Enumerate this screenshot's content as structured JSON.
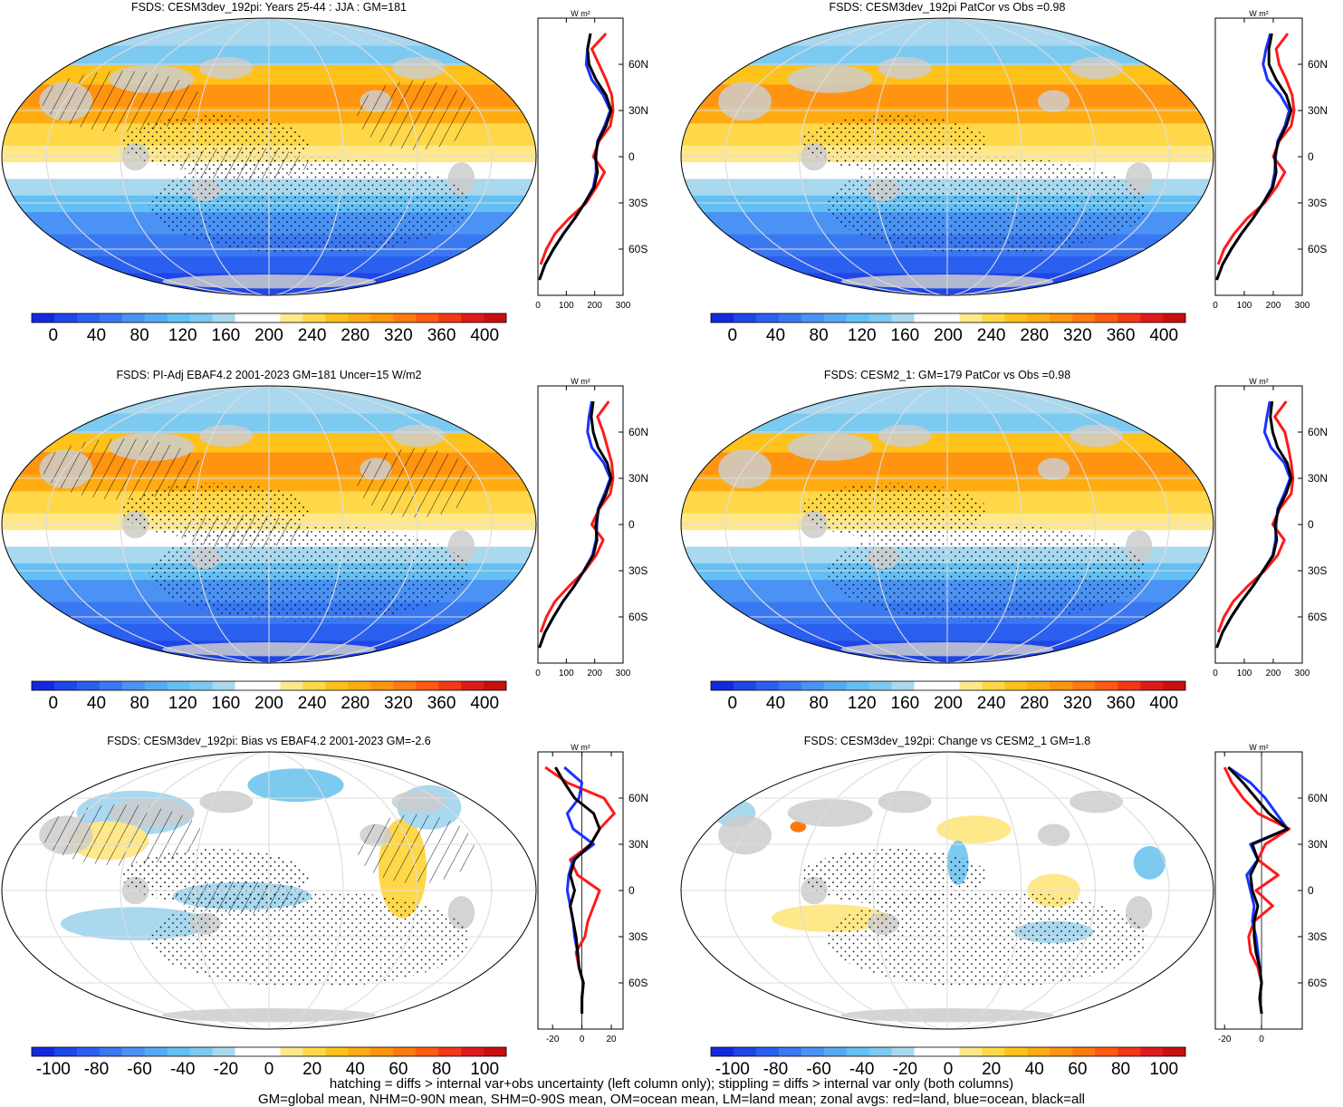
{
  "footer": {
    "line1": "hatching = diffs > internal var+obs uncertainty (left column only); stippling = diffs > internal var only (both columns)",
    "line2": "GM=global mean, NHM=0-90N mean, SHM=0-90S mean, OM=ocean mean, LM=land mean; zonal avgs: red=land, blue=ocean, black=all"
  },
  "colors": {
    "land": "#ff1a1a",
    "ocean": "#1a33ff",
    "all": "#000000",
    "gray_land": "#cccccc"
  },
  "palette": [
    "#1428e0",
    "#1e46e8",
    "#2a5ff0",
    "#3a78f2",
    "#4a92f4",
    "#55aaf4",
    "#62c0f4",
    "#7ccaf0",
    "#a9d8ef",
    "#ffffff",
    "#ffffff",
    "#ffe88a",
    "#ffd84a",
    "#ffc21a",
    "#ffab12",
    "#ff9410",
    "#ff7a10",
    "#ff5a10",
    "#f23814",
    "#e01a1a",
    "#c80f0f"
  ],
  "chart_data": [
    {
      "type": "heatmap",
      "title": "FSDS: CESM3dev_192pi: Years 25-44 : JJA : GM=181",
      "colorbar_ticks": [
        "0",
        "40",
        "80",
        "120",
        "160",
        "200",
        "240",
        "280",
        "320",
        "360",
        "400"
      ],
      "colorbar_range": [
        -20,
        420
      ],
      "zonal": {
        "title": "W m²",
        "xlim": [
          0,
          300
        ],
        "xticks": [
          "0",
          "100",
          "200",
          "300"
        ],
        "lat_labels": [
          "60N",
          "30N",
          "0",
          "30S",
          "60S"
        ],
        "lat": [
          -90,
          -80,
          -70,
          -60,
          -50,
          -40,
          -30,
          -20,
          -10,
          0,
          10,
          20,
          30,
          40,
          50,
          60,
          70,
          80,
          90
        ],
        "series": [
          {
            "name": "land",
            "color": "#ff1a1a",
            "values": [
              null,
              null,
              10,
              30,
              60,
              110,
              170,
              205,
              235,
              195,
              215,
              255,
              265,
              260,
              240,
              215,
              190,
              240,
              null
            ]
          },
          {
            "name": "ocean",
            "color": "#1a33ff",
            "values": [
              null,
              5,
              25,
              55,
              90,
              130,
              165,
              195,
              205,
              205,
              210,
              235,
              255,
              230,
              190,
              170,
              175,
              185,
              null
            ]
          },
          {
            "name": "all",
            "color": "#000000",
            "values": [
              null,
              5,
              25,
              55,
              90,
              130,
              165,
              198,
              210,
              202,
              212,
              240,
              258,
              240,
              205,
              180,
              175,
              185,
              null
            ]
          }
        ]
      }
    },
    {
      "type": "heatmap",
      "title": "FSDS: CESM3dev_192pi PatCor vs Obs =0.98",
      "colorbar_ticks": [
        "0",
        "40",
        "80",
        "120",
        "160",
        "200",
        "240",
        "280",
        "320",
        "360",
        "400"
      ],
      "colorbar_range": [
        -20,
        420
      ],
      "zonal": {
        "title": "W m²",
        "xlim": [
          0,
          300
        ],
        "xticks": [
          "0",
          "100",
          "200",
          "300"
        ],
        "lat_labels": [
          "60N",
          "30N",
          "0",
          "30S",
          "60S"
        ],
        "lat": [
          -90,
          -80,
          -70,
          -60,
          -50,
          -40,
          -30,
          -20,
          -10,
          0,
          10,
          20,
          30,
          40,
          50,
          60,
          70,
          80,
          90
        ],
        "series": [
          {
            "name": "land",
            "color": "#ff1a1a",
            "values": [
              null,
              null,
              10,
              30,
              65,
              110,
              170,
              210,
              240,
              200,
              220,
              262,
              272,
              265,
              245,
              220,
              210,
              250,
              null
            ]
          },
          {
            "name": "ocean",
            "color": "#1a33ff",
            "values": [
              null,
              5,
              25,
              55,
              90,
              130,
              165,
              195,
              205,
              208,
              215,
              240,
              255,
              225,
              180,
              165,
              175,
              190,
              null
            ]
          },
          {
            "name": "all",
            "color": "#000000",
            "values": [
              null,
              5,
              25,
              55,
              90,
              130,
              165,
              198,
              210,
              205,
              218,
              245,
              262,
              245,
              210,
              185,
              185,
              195,
              null
            ]
          }
        ]
      }
    },
    {
      "type": "heatmap",
      "title": "FSDS: PI-Adj EBAF4.2 2001-2023 GM=181 Uncer=15 W/m2",
      "colorbar_ticks": [
        "0",
        "40",
        "80",
        "120",
        "160",
        "200",
        "240",
        "280",
        "320",
        "360",
        "400"
      ],
      "colorbar_range": [
        -20,
        420
      ],
      "zonal": {
        "title": "W m²",
        "xlim": [
          0,
          300
        ],
        "xticks": [
          "0",
          "100",
          "200",
          "300"
        ],
        "lat_labels": [
          "60N",
          "30N",
          "0",
          "30S",
          "60S"
        ],
        "lat": [
          -90,
          -80,
          -70,
          -60,
          -50,
          -40,
          -30,
          -20,
          -10,
          0,
          10,
          20,
          30,
          40,
          50,
          60,
          70,
          80,
          90
        ],
        "series": [
          {
            "name": "land",
            "color": "#ff1a1a",
            "values": [
              null,
              null,
              10,
              30,
              60,
              110,
              165,
              205,
              230,
              190,
              215,
              255,
              265,
              260,
              245,
              230,
              210,
              250,
              null
            ]
          },
          {
            "name": "ocean",
            "color": "#1a33ff",
            "values": [
              null,
              5,
              25,
              55,
              88,
              128,
              162,
              192,
              205,
              208,
              212,
              235,
              255,
              232,
              190,
              175,
              180,
              190,
              null
            ]
          },
          {
            "name": "all",
            "color": "#000000",
            "values": [
              null,
              5,
              25,
              55,
              88,
              128,
              162,
              195,
              208,
              204,
              214,
              240,
              258,
              244,
              212,
              195,
              188,
              195,
              null
            ]
          }
        ]
      }
    },
    {
      "type": "heatmap",
      "title": "FSDS: CESM2_1: GM=179 PatCor vs Obs =0.98",
      "colorbar_ticks": [
        "0",
        "40",
        "80",
        "120",
        "160",
        "200",
        "240",
        "280",
        "320",
        "360",
        "400"
      ],
      "colorbar_range": [
        -20,
        420
      ],
      "zonal": {
        "title": "W m²",
        "xlim": [
          0,
          300
        ],
        "xticks": [
          "0",
          "100",
          "200",
          "300"
        ],
        "lat_labels": [
          "60N",
          "30N",
          "0",
          "30S",
          "60S"
        ],
        "lat": [
          -90,
          -80,
          -70,
          -60,
          -50,
          -40,
          -30,
          -20,
          -10,
          0,
          10,
          20,
          30,
          40,
          50,
          60,
          70,
          80,
          90
        ],
        "series": [
          {
            "name": "land",
            "color": "#ff1a1a",
            "values": [
              null,
              null,
              10,
              30,
              62,
              112,
              170,
              215,
              238,
              198,
              222,
              262,
              268,
              262,
              252,
              240,
              205,
              245,
              null
            ]
          },
          {
            "name": "ocean",
            "color": "#1a33ff",
            "values": [
              null,
              5,
              25,
              55,
              90,
              130,
              165,
              198,
              208,
              210,
              215,
              238,
              258,
              238,
              192,
              170,
              178,
              188,
              null
            ]
          },
          {
            "name": "all",
            "color": "#000000",
            "values": [
              null,
              5,
              25,
              55,
              90,
              130,
              165,
              200,
              212,
              206,
              218,
              244,
              262,
              248,
              215,
              198,
              190,
              196,
              null
            ]
          }
        ]
      }
    },
    {
      "type": "heatmap",
      "title": "FSDS: CESM3dev_192pi: Bias vs EBAF4.2 2001-2023 GM=-2.6",
      "colorbar_ticks": [
        "-100",
        "-80",
        "-60",
        "-40",
        "-20",
        "0",
        "20",
        "40",
        "60",
        "80",
        "100"
      ],
      "colorbar_range": [
        -110,
        110
      ],
      "zonal": {
        "title": "W m²",
        "xlim": [
          -30,
          28
        ],
        "xticks": [
          "-20",
          "0",
          "20"
        ],
        "lat_labels": [
          "60N",
          "30N",
          "0",
          "30S",
          "60S"
        ],
        "lat": [
          -90,
          -80,
          -70,
          -60,
          -50,
          -40,
          -30,
          -20,
          -10,
          0,
          10,
          20,
          30,
          40,
          50,
          60,
          70,
          80,
          90
        ],
        "series": [
          {
            "name": "land",
            "color": "#ff1a1a",
            "values": [
              null,
              null,
              0,
              1,
              -2,
              -4,
              2,
              4,
              8,
              12,
              -3,
              -8,
              6,
              12,
              22,
              15,
              -10,
              -25,
              null
            ]
          },
          {
            "name": "ocean",
            "color": "#1a33ff",
            "values": [
              null,
              0,
              0,
              1,
              -2,
              -3,
              -5,
              -6,
              -8,
              -10,
              -9,
              -6,
              8,
              -6,
              -10,
              -2,
              0,
              -12,
              null
            ]
          },
          {
            "name": "all",
            "color": "#000000",
            "values": [
              null,
              0,
              0,
              1,
              -2,
              -3,
              -4,
              -6,
              -8,
              -5,
              -8,
              -5,
              6,
              12,
              8,
              -5,
              -12,
              -18,
              null
            ]
          }
        ]
      }
    },
    {
      "type": "heatmap",
      "title": "FSDS: CESM3dev_192pi: Change vs CESM2_1 GM=1.8",
      "colorbar_ticks": [
        "-100",
        "-80",
        "-60",
        "-40",
        "-20",
        "0",
        "20",
        "40",
        "60",
        "80",
        "100"
      ],
      "colorbar_range": [
        -110,
        110
      ],
      "zonal": {
        "title": "W m²",
        "xlim": [
          -25,
          22
        ],
        "xticks": [
          "-20",
          "0"
        ],
        "lat_labels": [
          "60N",
          "30N",
          "0",
          "30S",
          "60S"
        ],
        "lat": [
          -90,
          -80,
          -70,
          -60,
          -50,
          -40,
          -30,
          -20,
          -10,
          0,
          10,
          20,
          30,
          40,
          50,
          60,
          70,
          80,
          90
        ],
        "series": [
          {
            "name": "land",
            "color": "#ff1a1a",
            "values": [
              null,
              null,
              -1,
              0,
              -2,
              -6,
              -7,
              -4,
              6,
              -3,
              9,
              -2,
              2,
              15,
              -2,
              -10,
              -16,
              -20,
              null
            ]
          },
          {
            "name": "ocean",
            "color": "#1a33ff",
            "values": [
              null,
              0,
              -1,
              0,
              -1,
              -2,
              -3,
              -5,
              -4,
              -6,
              -8,
              -2,
              -6,
              14,
              8,
              2,
              -6,
              -18,
              null
            ]
          },
          {
            "name": "all",
            "color": "#000000",
            "values": [
              null,
              0,
              -1,
              0,
              -1,
              -3,
              -4,
              -4,
              -2,
              -5,
              -6,
              -2,
              -5,
              14,
              4,
              -3,
              -10,
              -18,
              null
            ]
          }
        ]
      }
    }
  ]
}
